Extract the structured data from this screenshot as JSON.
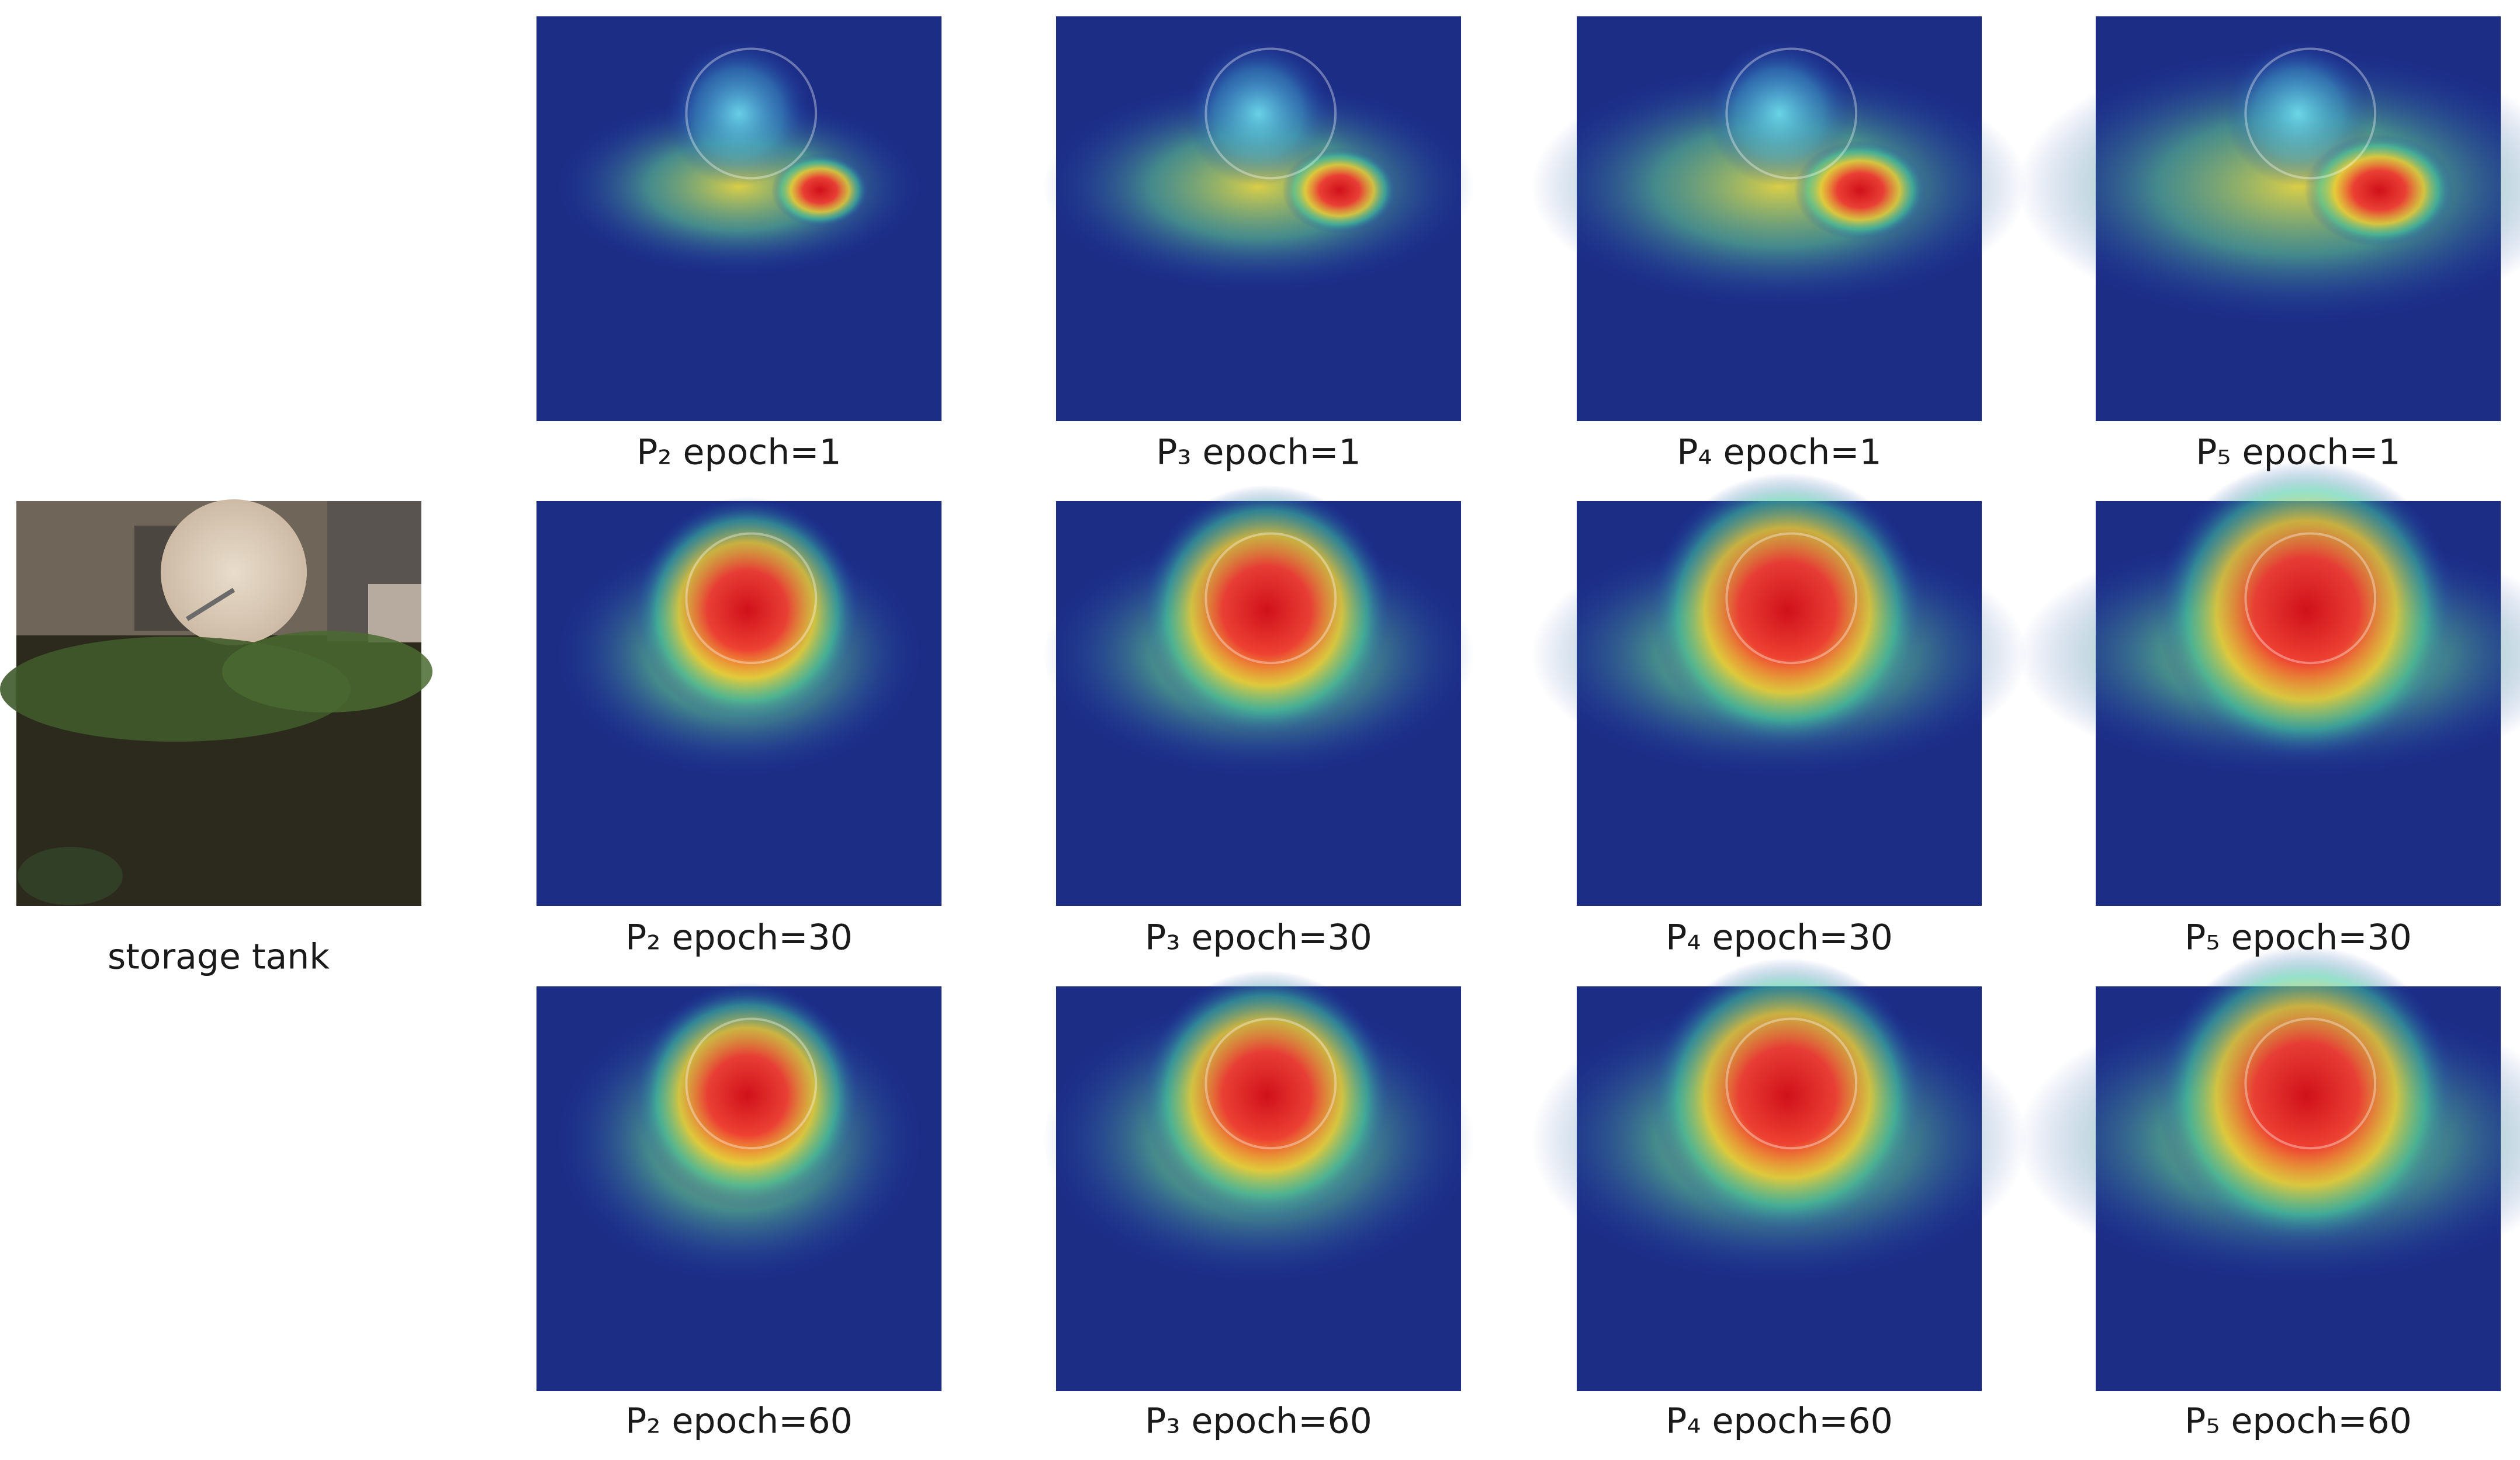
{
  "original": {
    "caption": "storage tank"
  },
  "grid": {
    "rows": [
      [
        "P₂ epoch=1",
        "P₃ epoch=1",
        "P₄ epoch=1",
        "P₅ epoch=1"
      ],
      [
        "P₂ epoch=30",
        "P₃ epoch=30",
        "P₄ epoch=30",
        "P₅ epoch=30"
      ],
      [
        "P₂ epoch=60",
        "P₃ epoch=60",
        "P₄ epoch=60",
        "P₅ epoch=60"
      ]
    ]
  }
}
